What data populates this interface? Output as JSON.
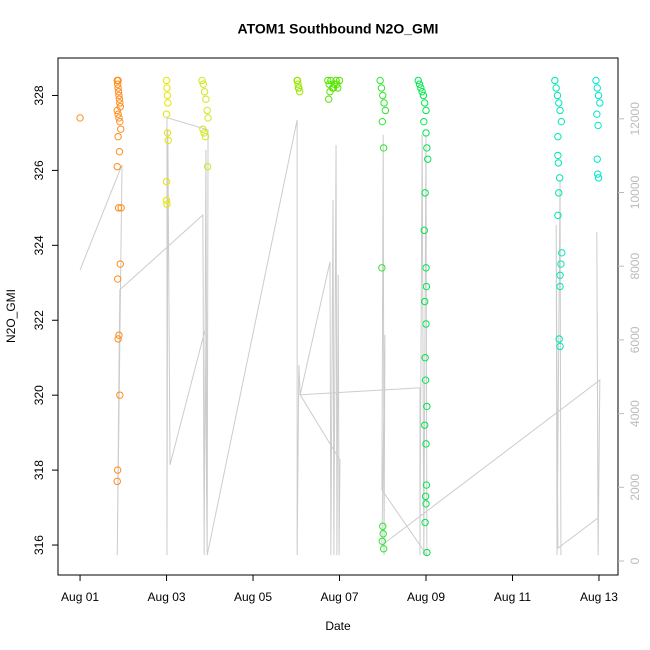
{
  "chart_data": {
    "type": "scatter",
    "title": "ATOM1 Southbound N2O_GMI",
    "x_label": "Date",
    "y_label": "N2O_GMI",
    "xlim": [
      -0.51,
      12.44
    ],
    "xticks": [
      {
        "value": 0,
        "label": "Aug 01"
      },
      {
        "value": 2,
        "label": "Aug 03"
      },
      {
        "value": 4,
        "label": "Aug 05"
      },
      {
        "value": 6,
        "label": "Aug 07"
      },
      {
        "value": 8,
        "label": "Aug 09"
      },
      {
        "value": 10,
        "label": "Aug 11"
      },
      {
        "value": 12,
        "label": "Aug 13"
      }
    ],
    "ylim": [
      315.2,
      329.0
    ],
    "yticks": [
      316,
      318,
      320,
      322,
      324,
      326,
      328
    ],
    "y2lim": [
      -380,
      13650
    ],
    "y2ticks": [
      0,
      2000,
      4000,
      6000,
      8000,
      10000,
      12000
    ],
    "series": [
      {
        "type": "line",
        "axis": "y2",
        "color": "#cccccc",
        "x": [
          0,
          0.97,
          0.86,
          0.9,
          0.92,
          2.84,
          2.87,
          2.91,
          2.94,
          2.96,
          2.01,
          2.01,
          2.03,
          2.08,
          2.89,
          2.94,
          5.02,
          5.02,
          5.06,
          5.09,
          5.78,
          5.8,
          5.85,
          5.87,
          5.92,
          5.94,
          5.97,
          5.99,
          6.01,
          5.09,
          7.86,
          7.86,
          7.91,
          7.95,
          8.0,
          8.02,
          6.98,
          7.01,
          7.03,
          7.05,
          6.98,
          12.02,
          11.98,
          11.95,
          11.98,
          11.05,
          11.01,
          11.03,
          11.1,
          11.12
        ],
        "values": [
          7900,
          10750,
          160,
          5190,
          7360,
          9390,
          160,
          11160,
          160,
          11700,
          12030,
          160,
          11700,
          2610,
          6270,
          160,
          11970,
          160,
          5320,
          4510,
          8120,
          160,
          9800,
          160,
          11290,
          160,
          7770,
          160,
          2740,
          4510,
          4700,
          160,
          11570,
          160,
          11570,
          160,
          1930,
          11570,
          160,
          6140,
          430,
          4910,
          160,
          8930,
          1170,
          350,
          9120,
          160,
          10340,
          160
        ]
      },
      {
        "color": "#ff8c1a",
        "x": [
          0,
          0.86,
          0.87,
          0.88,
          0.89,
          0.9,
          0.91,
          0.92,
          0.93,
          0.86,
          0.88,
          0.9,
          0.92,
          0.94,
          0.88,
          0.91,
          0.86,
          0.95,
          0.89,
          0.93,
          0.87,
          0.9,
          0.88,
          0.92,
          0.87,
          0.86,
          0.88
        ],
        "values": [
          327.4,
          328.4,
          328.3,
          328.2,
          328.1,
          328,
          327.9,
          327.8,
          327.7,
          327.6,
          327.5,
          327.4,
          327.3,
          327.1,
          326.9,
          326.5,
          326.1,
          325,
          325,
          323.5,
          323.1,
          321.6,
          321.5,
          320,
          318,
          317.7,
          328.4
        ]
      },
      {
        "color": "#e6e600",
        "x": [
          2.0,
          2.01,
          2.02,
          2.03,
          2.0,
          2.02,
          2.04,
          2.0,
          2.0,
          2.01
        ],
        "values": [
          328.4,
          328.2,
          328,
          327.8,
          327.5,
          327,
          326.8,
          325.7,
          325.2,
          325.1
        ]
      },
      {
        "color": "#d2e61a",
        "x": [
          2.82,
          2.85,
          2.88,
          2.91,
          2.94,
          2.96,
          2.84,
          2.87,
          2.9,
          2.95
        ],
        "values": [
          328.4,
          328.3,
          328.1,
          327.9,
          327.6,
          327.4,
          327.1,
          327,
          326.9,
          326.1
        ]
      },
      {
        "color": "#99e600",
        "x": [
          5.02,
          5.04,
          5.06,
          5.08,
          5.05,
          5.03
        ],
        "values": [
          328.4,
          328.3,
          328.2,
          328.1,
          328.2,
          328.4
        ]
      },
      {
        "color": "#55e600",
        "x": [
          5.73,
          5.76,
          5.8,
          5.84,
          5.88,
          5.92,
          5.96,
          6.0,
          5.78,
          5.86,
          5.94,
          5.75
        ],
        "values": [
          328.4,
          328.3,
          328.4,
          328.2,
          328.3,
          328.4,
          328.2,
          328.4,
          328.1,
          328.2,
          328.3,
          327.9
        ]
      },
      {
        "color": "#2ee62e",
        "x": [
          6.94,
          6.97,
          7.0,
          7.03,
          7.06,
          6.99,
          7.02,
          6.98,
          7.0,
          7.01,
          6.99,
          7.02
        ],
        "values": [
          328.4,
          328.2,
          328,
          327.8,
          327.6,
          327.3,
          326.6,
          323.4,
          316.5,
          316.3,
          316.1,
          315.9
        ]
      },
      {
        "color": "#00e64d",
        "x": [
          7.82,
          7.85,
          7.88,
          7.91,
          7.94,
          7.97,
          8.0,
          7.95,
          8.0,
          8.02,
          8.04,
          7.98,
          7.96,
          8.0,
          8.01,
          7.97,
          8.0,
          7.98,
          7.99,
          8.02,
          7.97,
          8.0,
          8.01,
          7.99,
          8.0,
          7.98,
          8.02
        ],
        "values": [
          328.4,
          328.3,
          328.2,
          328.1,
          328,
          327.8,
          327.6,
          327.3,
          327,
          326.6,
          326.3,
          325.4,
          324.4,
          323.4,
          322.9,
          322.5,
          321.9,
          321,
          320.4,
          319.7,
          319.2,
          318.7,
          317.6,
          317.3,
          317.1,
          316.6,
          315.8
        ]
      },
      {
        "color": "#00e6b3",
        "x": [
          10.98,
          11.01,
          11.04,
          11.07,
          11.1,
          11.13,
          11.05,
          11.05,
          11.06,
          11.09,
          11.07,
          11.05,
          11.14,
          11.12,
          11.1,
          11.1,
          11.08,
          11.1
        ],
        "values": [
          328.4,
          328.2,
          328,
          327.8,
          327.6,
          327.3,
          326.9,
          326.4,
          326.2,
          325.8,
          325.4,
          324.8,
          323.8,
          323.5,
          323.2,
          322.9,
          321.5,
          321.3
        ]
      },
      {
        "color": "#00e6cc",
        "x": [
          11.93,
          11.96,
          11.99,
          12.02,
          11.95,
          11.98,
          11.96,
          11.97,
          11.99
        ],
        "values": [
          328.4,
          328.2,
          328,
          327.8,
          327.5,
          327.2,
          326.3,
          325.9,
          325.8
        ]
      }
    ]
  }
}
